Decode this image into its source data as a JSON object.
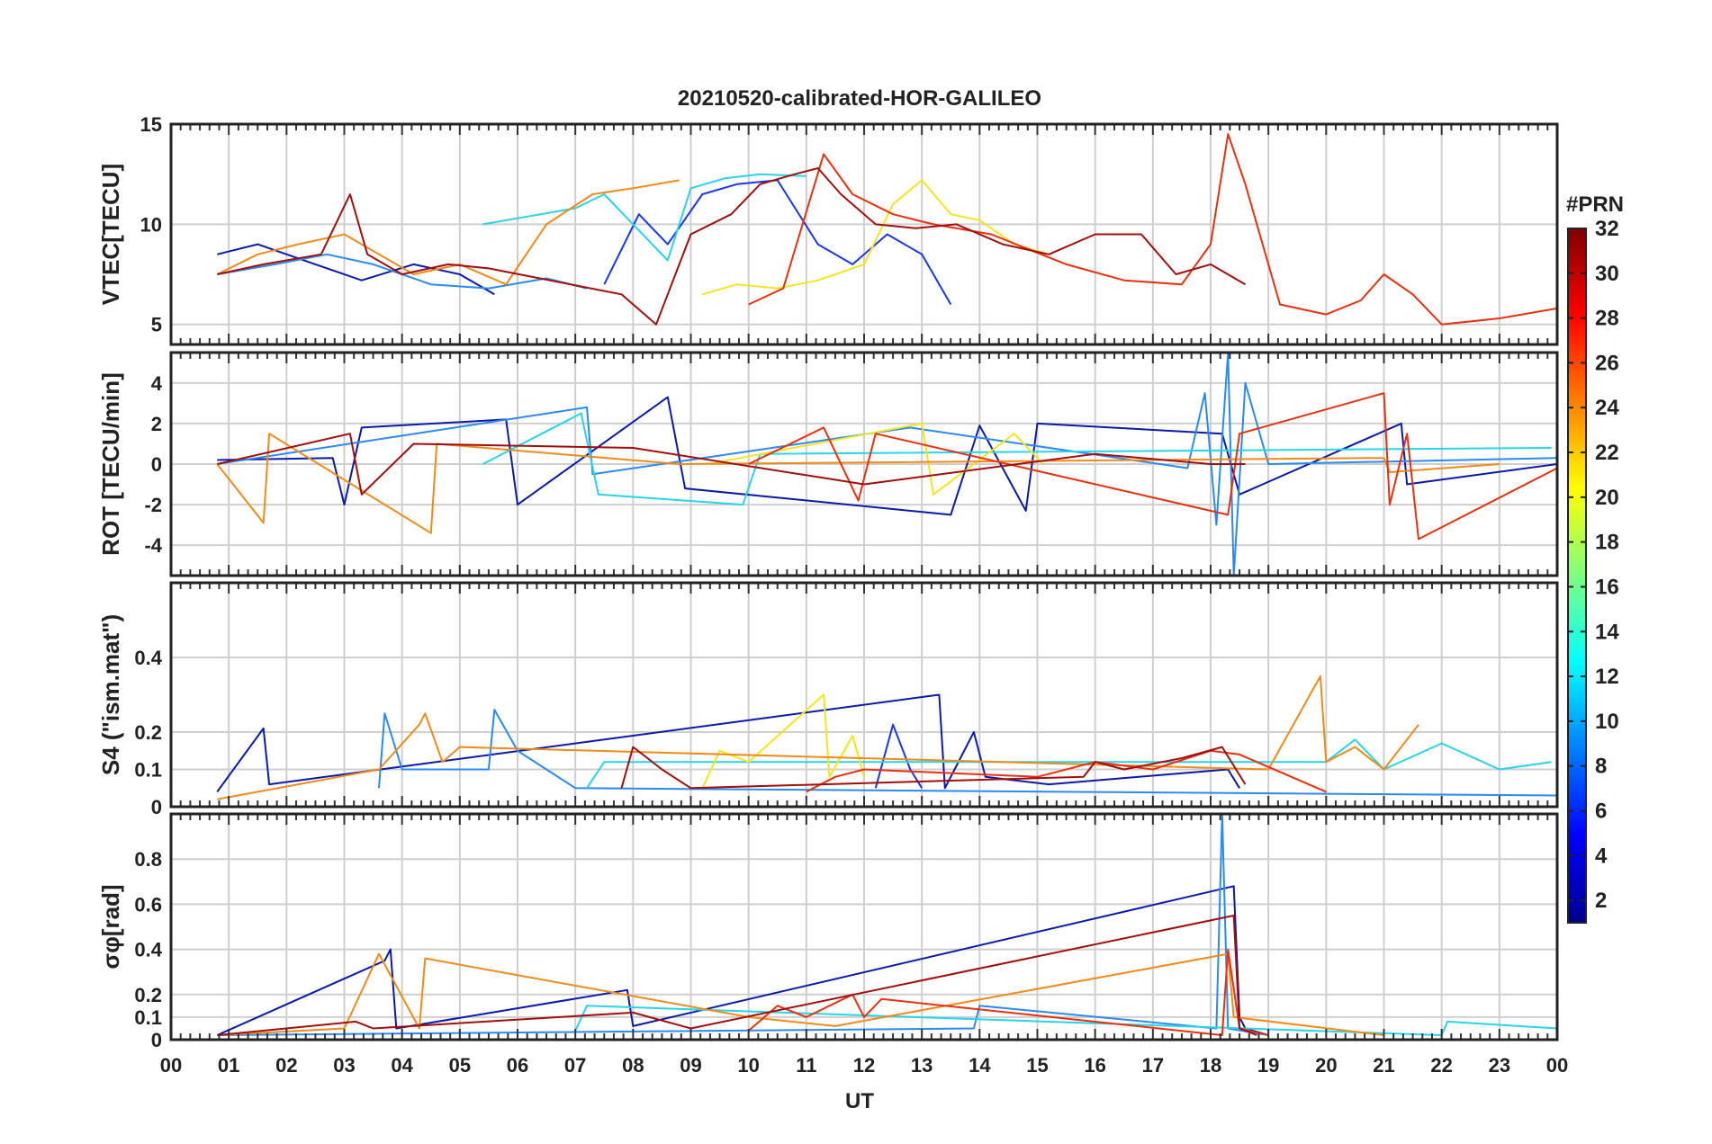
{
  "figure": {
    "title": "20210520-calibrated-HOR-GALILEO",
    "xlabel": "UT",
    "x_ticks": [
      "00",
      "01",
      "02",
      "03",
      "04",
      "05",
      "06",
      "07",
      "08",
      "09",
      "10",
      "11",
      "12",
      "13",
      "14",
      "15",
      "16",
      "17",
      "18",
      "19",
      "20",
      "21",
      "22",
      "23",
      "00"
    ]
  },
  "colorbar": {
    "title": "#PRN",
    "range": [
      1,
      32
    ],
    "ticks": [
      "2",
      "4",
      "6",
      "8",
      "10",
      "12",
      "14",
      "16",
      "18",
      "20",
      "22",
      "24",
      "26",
      "28",
      "30",
      "32"
    ],
    "tick_values": [
      2,
      4,
      6,
      8,
      10,
      12,
      14,
      16,
      18,
      20,
      22,
      24,
      26,
      28,
      30,
      32
    ],
    "colormap": "jet"
  },
  "chart_data": [
    {
      "type": "line",
      "panel": "vtec",
      "ylabel": "VTEC[TECU]",
      "ylim": [
        4,
        15
      ],
      "y_tick_values": [
        5,
        10,
        15
      ],
      "y_ticks": [
        "5",
        "10",
        "15"
      ],
      "xlim": [
        0,
        24
      ],
      "grid": true,
      "series": [
        {
          "prn": 2,
          "color": "#0a1aa8",
          "x": [
            0.8,
            1.5,
            2.5,
            3.3,
            4.2,
            5.0,
            5.6
          ],
          "y": [
            8.5,
            9.0,
            8.0,
            7.2,
            8.0,
            7.5,
            6.5
          ]
        },
        {
          "prn": 5,
          "color": "#1a36e8",
          "x": [
            7.5,
            8.1,
            8.6,
            9.2,
            9.8,
            10.5,
            11.2,
            11.8,
            12.4,
            13.0,
            13.5
          ],
          "y": [
            7.0,
            10.5,
            9.0,
            11.5,
            12.0,
            12.2,
            9.0,
            8.0,
            9.5,
            8.5,
            6.0
          ]
        },
        {
          "prn": 9,
          "color": "#2a8af0",
          "x": [
            0.8,
            1.8,
            2.7,
            3.5,
            4.5,
            5.5,
            6.5,
            7.2
          ],
          "y": [
            7.5,
            8.0,
            8.5,
            8.0,
            7.0,
            6.8,
            7.3,
            6.8
          ]
        },
        {
          "prn": 12,
          "color": "#27d4e8",
          "x": [
            5.4,
            6.0,
            7.0,
            7.5,
            8.0,
            8.6,
            9.0,
            9.6,
            10.2,
            11.0
          ],
          "y": [
            10.0,
            10.3,
            10.8,
            11.5,
            10.0,
            8.2,
            11.8,
            12.3,
            12.5,
            12.4
          ]
        },
        {
          "prn": 19,
          "color": "#f2e61e",
          "x": [
            9.2,
            9.8,
            10.5,
            11.2,
            12.0,
            12.5,
            13.0,
            13.5,
            14.0,
            14.6,
            15.2
          ],
          "y": [
            6.5,
            7.0,
            6.8,
            7.2,
            8.0,
            11.0,
            12.2,
            10.5,
            10.2,
            9.0,
            8.5
          ]
        },
        {
          "prn": 23,
          "color": "#f08a18",
          "x": [
            0.8,
            1.5,
            2.2,
            3.0,
            3.6,
            4.2,
            5.0,
            5.8,
            6.5,
            7.3,
            8.0,
            8.8
          ],
          "y": [
            7.5,
            8.5,
            9.0,
            9.5,
            8.5,
            7.5,
            8.0,
            7.0,
            10.0,
            11.5,
            11.8,
            12.2
          ]
        },
        {
          "prn": 27,
          "color": "#e83010",
          "x": [
            10.0,
            10.6,
            11.3,
            11.8,
            12.5,
            13.2,
            14.2,
            15.5,
            16.5,
            17.5,
            18.0,
            18.3,
            18.6,
            19.2,
            20.0,
            20.6,
            21.0,
            21.5,
            22.0,
            23.0,
            24.0
          ],
          "y": [
            6.0,
            6.8,
            13.5,
            11.5,
            10.5,
            10.0,
            9.5,
            8.0,
            7.2,
            7.0,
            9.0,
            14.5,
            12.0,
            6.0,
            5.5,
            6.2,
            7.5,
            6.5,
            5.0,
            5.3,
            5.8
          ]
        },
        {
          "prn": 30,
          "color": "#a00e0e",
          "x": [
            0.8,
            1.6,
            2.6,
            3.1,
            3.4,
            4.0,
            4.8,
            5.5,
            7.8,
            8.4,
            9.0,
            9.7,
            10.2,
            10.8,
            11.2,
            11.6,
            12.2,
            12.9,
            13.6,
            14.4,
            15.2,
            16.0,
            16.8,
            17.4,
            18.0,
            18.6
          ],
          "y": [
            7.5,
            8.0,
            8.5,
            11.5,
            8.5,
            7.5,
            8.0,
            7.8,
            6.5,
            5.0,
            9.5,
            10.5,
            12.0,
            12.5,
            12.8,
            11.5,
            10.0,
            9.8,
            10.0,
            9.0,
            8.5,
            9.5,
            9.5,
            7.5,
            8.0,
            7.0
          ]
        }
      ]
    },
    {
      "type": "line",
      "panel": "rot",
      "ylabel": "ROT [TECU/min]",
      "ylim": [
        -5.5,
        5.5
      ],
      "y_tick_values": [
        -4,
        -2,
        0,
        2,
        4
      ],
      "y_ticks": [
        "-4",
        "-2",
        "0",
        "2",
        "4"
      ],
      "xlim": [
        0,
        24
      ],
      "grid": true,
      "series": [
        {
          "prn": 2,
          "color": "#0a1aa8",
          "x": [
            0.8,
            2.8,
            3.0,
            3.3,
            5.8,
            6.0,
            8.6,
            8.9,
            13.5,
            14.0,
            14.8,
            15.0,
            18.2,
            18.5,
            21.3,
            21.4,
            24.0
          ],
          "y": [
            0.2,
            0.3,
            -2.0,
            1.8,
            2.2,
            -2.0,
            3.3,
            -1.2,
            -2.5,
            1.9,
            -2.3,
            2.0,
            1.5,
            -1.5,
            2.0,
            -1.0,
            0.0
          ]
        },
        {
          "prn": 9,
          "color": "#2a8af0",
          "x": [
            0.8,
            7.2,
            7.3,
            12.8,
            17.6,
            17.9,
            18.1,
            18.3,
            18.4,
            18.6,
            19.0,
            24.0
          ],
          "y": [
            0.0,
            2.8,
            -0.5,
            1.8,
            -0.2,
            3.5,
            -3.0,
            5.5,
            -5.5,
            4.0,
            0.0,
            0.3
          ]
        },
        {
          "prn": 12,
          "color": "#27d4e8",
          "x": [
            5.4,
            7.1,
            7.4,
            9.9,
            10.2,
            23.9
          ],
          "y": [
            0.0,
            2.5,
            -1.5,
            -2.0,
            0.5,
            0.8
          ]
        },
        {
          "prn": 19,
          "color": "#f2e61e",
          "x": [
            9.3,
            13.0,
            13.2,
            14.6,
            15.1
          ],
          "y": [
            0.0,
            2.0,
            -1.5,
            1.5,
            0.0
          ]
        },
        {
          "prn": 23,
          "color": "#f08a18",
          "x": [
            0.8,
            1.6,
            1.7,
            4.5,
            4.6,
            8.8,
            21.0,
            21.1,
            23.0
          ],
          "y": [
            0.0,
            -2.9,
            1.5,
            -3.4,
            1.0,
            0.0,
            0.3,
            -0.4,
            0.0
          ]
        },
        {
          "prn": 27,
          "color": "#e83010",
          "x": [
            10.0,
            11.3,
            11.9,
            12.2,
            18.3,
            18.5,
            21.0,
            21.1,
            21.4,
            21.6,
            24.0
          ],
          "y": [
            0.0,
            1.8,
            -1.8,
            1.5,
            -2.5,
            1.5,
            3.5,
            -2.0,
            1.5,
            -3.7,
            -0.2
          ]
        },
        {
          "prn": 30,
          "color": "#a00e0e",
          "x": [
            0.8,
            3.1,
            3.3,
            4.2,
            8.0,
            12.0,
            16.0,
            18.0,
            18.6
          ],
          "y": [
            0.0,
            1.5,
            -1.5,
            1.0,
            0.8,
            -1.0,
            0.5,
            0.0,
            0.0
          ]
        }
      ]
    },
    {
      "type": "line",
      "panel": "s4",
      "ylabel": "S4 (\"ism.mat\")",
      "ylim": [
        0,
        0.6
      ],
      "y_tick_values": [
        0,
        0.1,
        0.2,
        0.4
      ],
      "y_ticks": [
        "0",
        "0.1",
        "0.2",
        "0.4"
      ],
      "xlim": [
        0,
        24
      ],
      "grid": true,
      "series": [
        {
          "prn": 2,
          "color": "#0a1aa8",
          "x": [
            0.8,
            1.6,
            1.7,
            13.3,
            13.4,
            13.9,
            14.1,
            15.2,
            18.3,
            18.5
          ],
          "y": [
            0.04,
            0.21,
            0.06,
            0.3,
            0.05,
            0.2,
            0.08,
            0.06,
            0.1,
            0.05
          ]
        },
        {
          "prn": 5,
          "color": "#1a36e8",
          "x": [
            12.2,
            12.5,
            12.8,
            13.0
          ],
          "y": [
            0.05,
            0.22,
            0.1,
            0.05
          ]
        },
        {
          "prn": 9,
          "color": "#2a8af0",
          "x": [
            3.6,
            3.7,
            4.0,
            5.5,
            5.6,
            6.0,
            6.5,
            7.0,
            24.0
          ],
          "y": [
            0.05,
            0.25,
            0.1,
            0.1,
            0.26,
            0.15,
            0.1,
            0.05,
            0.03
          ]
        },
        {
          "prn": 12,
          "color": "#27d4e8",
          "x": [
            7.2,
            7.5,
            20.0,
            20.5,
            21.0,
            22.0,
            23.0,
            23.9
          ],
          "y": [
            0.05,
            0.12,
            0.12,
            0.18,
            0.1,
            0.17,
            0.1,
            0.12
          ]
        },
        {
          "prn": 19,
          "color": "#f2e61e",
          "x": [
            9.2,
            9.5,
            10.0,
            11.3,
            11.4,
            11.8,
            12.0
          ],
          "y": [
            0.05,
            0.15,
            0.12,
            0.3,
            0.08,
            0.19,
            0.08
          ]
        },
        {
          "prn": 23,
          "color": "#f08a18",
          "x": [
            0.8,
            3.6,
            4.3,
            4.4,
            4.7,
            5.0,
            19.0,
            19.9,
            20.0,
            20.5,
            21.0,
            21.6
          ],
          "y": [
            0.02,
            0.1,
            0.22,
            0.25,
            0.12,
            0.16,
            0.1,
            0.35,
            0.12,
            0.16,
            0.1,
            0.22
          ]
        },
        {
          "prn": 27,
          "color": "#e83010",
          "x": [
            11.0,
            11.5,
            12.0,
            15.0,
            16.0,
            17.0,
            18.0,
            18.5,
            20.0
          ],
          "y": [
            0.04,
            0.08,
            0.1,
            0.08,
            0.12,
            0.1,
            0.15,
            0.14,
            0.04
          ]
        },
        {
          "prn": 30,
          "color": "#a00e0e",
          "x": [
            7.8,
            8.0,
            8.5,
            9.0,
            15.8,
            16.0,
            16.5,
            17.5,
            18.2,
            18.6
          ],
          "y": [
            0.05,
            0.16,
            0.1,
            0.05,
            0.08,
            0.12,
            0.1,
            0.13,
            0.16,
            0.06
          ]
        }
      ]
    },
    {
      "type": "line",
      "panel": "sigma_phi",
      "ylabel": "σφ[rad]",
      "ylim": [
        0,
        1.0
      ],
      "y_tick_values": [
        0,
        0.1,
        0.2,
        0.4,
        0.6,
        0.8
      ],
      "y_ticks": [
        "0",
        "0.1",
        "0.2",
        "0.4",
        "0.6",
        "0.8"
      ],
      "xlim": [
        0,
        24
      ],
      "grid": true,
      "series": [
        {
          "prn": 2,
          "color": "#0a1aa8",
          "x": [
            0.8,
            3.7,
            3.8,
            3.9,
            7.9,
            8.0,
            18.4,
            18.5,
            18.6,
            19.0
          ],
          "y": [
            0.02,
            0.35,
            0.4,
            0.05,
            0.22,
            0.06,
            0.68,
            0.1,
            0.05,
            0.02
          ]
        },
        {
          "prn": 9,
          "color": "#2a8af0",
          "x": [
            0.8,
            13.9,
            14.0,
            18.1,
            18.2,
            18.3,
            19.0
          ],
          "y": [
            0.02,
            0.05,
            0.15,
            0.05,
            1.0,
            0.05,
            0.02
          ]
        },
        {
          "prn": 12,
          "color": "#27d4e8",
          "x": [
            7.0,
            7.2,
            22.0,
            22.1,
            24.0
          ],
          "y": [
            0.04,
            0.15,
            0.02,
            0.08,
            0.05
          ]
        },
        {
          "prn": 23,
          "color": "#f08a18",
          "x": [
            0.8,
            3.0,
            3.6,
            4.3,
            4.4,
            10.0,
            11.5,
            18.3,
            18.4,
            21.0
          ],
          "y": [
            0.02,
            0.05,
            0.38,
            0.05,
            0.36,
            0.1,
            0.06,
            0.38,
            0.1,
            0.02
          ]
        },
        {
          "prn": 27,
          "color": "#e83010",
          "x": [
            10.0,
            10.5,
            11.0,
            11.8,
            12.0,
            12.3,
            18.2,
            18.3,
            18.5,
            19.0
          ],
          "y": [
            0.04,
            0.15,
            0.1,
            0.2,
            0.1,
            0.18,
            0.02,
            0.4,
            0.05,
            0.02
          ]
        },
        {
          "prn": 30,
          "color": "#a00e0e",
          "x": [
            0.8,
            3.2,
            3.5,
            8.0,
            9.0,
            18.4,
            18.5,
            18.8
          ],
          "y": [
            0.02,
            0.08,
            0.05,
            0.12,
            0.05,
            0.55,
            0.05,
            0.02
          ]
        }
      ]
    }
  ]
}
